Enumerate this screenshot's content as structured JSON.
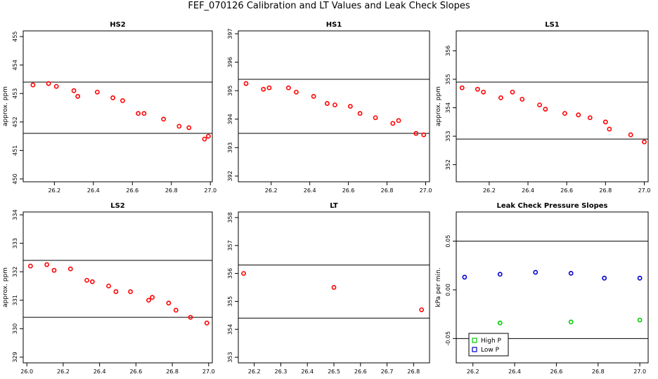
{
  "page_title": "FEF_070126  Calibration and LT Values and Leak Check Slopes",
  "chart_data": [
    {
      "type": "scatter",
      "title": "HS2",
      "ylabel": "approx. ppm",
      "xlim": [
        26.04,
        27.01
      ],
      "ylim": [
        449.9,
        455.2
      ],
      "xticks": [
        "26.2",
        "26.4",
        "26.6",
        "26.8",
        "27.0"
      ],
      "yticks": [
        "450",
        "451",
        "452",
        "453",
        "454",
        "455"
      ],
      "hlines": [
        453.4,
        451.6
      ],
      "marker_color": "#ff0000",
      "series": [
        {
          "x": [
            26.09,
            26.17,
            26.21,
            26.3,
            26.32,
            26.42,
            26.5,
            26.55,
            26.63,
            26.66,
            26.76,
            26.84,
            26.89,
            26.97,
            26.99
          ],
          "y": [
            453.3,
            453.35,
            453.25,
            453.1,
            452.9,
            453.05,
            452.85,
            452.75,
            452.3,
            452.3,
            452.1,
            451.85,
            451.8,
            451.4,
            451.5
          ]
        }
      ]
    },
    {
      "type": "scatter",
      "title": "HS1",
      "ylabel": "",
      "xlim": [
        26.03,
        27.02
      ],
      "ylim": [
        391.8,
        397.1
      ],
      "xticks": [
        "26.2",
        "26.4",
        "26.6",
        "26.8",
        "27.0"
      ],
      "yticks": [
        "392",
        "393",
        "394",
        "395",
        "396",
        "397"
      ],
      "hlines": [
        395.4,
        393.5
      ],
      "marker_color": "#ff0000",
      "series": [
        {
          "x": [
            26.07,
            26.16,
            26.19,
            26.29,
            26.33,
            26.42,
            26.49,
            26.53,
            26.61,
            26.66,
            26.74,
            26.83,
            26.86,
            26.95,
            26.99
          ],
          "y": [
            395.25,
            395.05,
            395.1,
            395.1,
            394.95,
            394.8,
            394.55,
            394.5,
            394.45,
            394.2,
            394.05,
            393.85,
            393.95,
            393.5,
            393.45
          ]
        }
      ]
    },
    {
      "type": "scatter",
      "title": "LS1",
      "ylabel": "approx. ppm",
      "xlim": [
        26.03,
        27.02
      ],
      "ylim": [
        351.4,
        356.7
      ],
      "xticks": [
        "26.2",
        "26.4",
        "26.6",
        "26.8",
        "27.0"
      ],
      "yticks": [
        "352",
        "353",
        "354",
        "355",
        "356"
      ],
      "hlines": [
        354.9,
        352.9
      ],
      "marker_color": "#ff0000",
      "series": [
        {
          "x": [
            26.06,
            26.14,
            26.17,
            26.26,
            26.32,
            26.37,
            26.46,
            26.49,
            26.59,
            26.66,
            26.72,
            26.8,
            26.82,
            26.93,
            27.0
          ],
          "y": [
            354.7,
            354.65,
            354.55,
            354.35,
            354.55,
            354.3,
            354.1,
            353.95,
            353.8,
            353.75,
            353.65,
            353.5,
            353.25,
            353.05,
            352.8
          ]
        }
      ]
    },
    {
      "type": "scatter",
      "title": "LS2",
      "ylabel": "approx. ppm",
      "xlim": [
        25.98,
        27.02
      ],
      "ylim": [
        328.8,
        334.1
      ],
      "xticks": [
        "26.0",
        "26.2",
        "26.4",
        "26.6",
        "26.8",
        "27.0"
      ],
      "yticks": [
        "329",
        "330",
        "331",
        "332",
        "333",
        "334"
      ],
      "hlines": [
        332.4,
        330.4
      ],
      "marker_color": "#ff0000",
      "series": [
        {
          "x": [
            26.02,
            26.11,
            26.15,
            26.24,
            26.33,
            26.36,
            26.45,
            26.49,
            26.57,
            26.67,
            26.69,
            26.78,
            26.82,
            26.9,
            26.99
          ],
          "y": [
            332.2,
            332.25,
            332.05,
            332.1,
            331.7,
            331.65,
            331.5,
            331.3,
            331.3,
            331.0,
            331.1,
            330.9,
            330.65,
            330.4,
            330.2
          ]
        }
      ]
    },
    {
      "type": "scatter",
      "title": "LT",
      "ylabel": "",
      "xlim": [
        26.14,
        26.86
      ],
      "ylim": [
        352.8,
        358.2
      ],
      "xticks": [
        "26.2",
        "26.3",
        "26.4",
        "26.5",
        "26.6",
        "26.7",
        "26.8"
      ],
      "yticks": [
        "353",
        "354",
        "355",
        "356",
        "357",
        "358"
      ],
      "hlines": [
        356.3,
        354.4
      ],
      "marker_color": "#ff0000",
      "series": [
        {
          "x": [
            26.16,
            26.5,
            26.83
          ],
          "y": [
            356.0,
            355.5,
            354.7
          ]
        }
      ]
    },
    {
      "type": "scatter",
      "title": "Leak Check Pressure Slopes",
      "ylabel": "kPa per min.",
      "xlim": [
        26.12,
        27.04
      ],
      "ylim": [
        -0.075,
        0.08
      ],
      "xticks": [
        "26.2",
        "26.4",
        "26.6",
        "26.8",
        "27.0"
      ],
      "yticks": [
        "-0.05",
        "0.00",
        "0.05"
      ],
      "hlines": [
        0.05,
        -0.05
      ],
      "legend": "bottom-left",
      "series": [
        {
          "name": "High P",
          "color": "#00cc00",
          "x": [
            26.16,
            26.33,
            26.5,
            26.67,
            26.83,
            27.0
          ],
          "y": [
            null,
            -0.034,
            null,
            -0.033,
            null,
            -0.031
          ]
        },
        {
          "name": "Low P",
          "color": "#0000cc",
          "x": [
            26.16,
            26.33,
            26.5,
            26.67,
            26.83,
            27.0
          ],
          "y": [
            0.013,
            0.016,
            0.018,
            0.017,
            0.012,
            0.012
          ]
        }
      ]
    }
  ]
}
